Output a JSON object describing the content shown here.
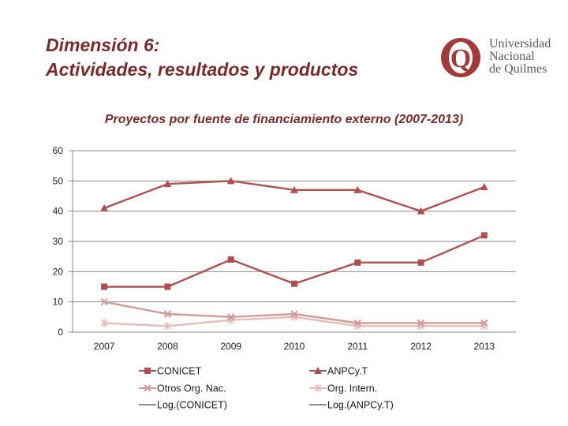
{
  "slide": {
    "title_line1": "Dimensión 6:",
    "title_line2": "Actividades, resultados y productos"
  },
  "logo": {
    "letter": "Q",
    "line1": "Universidad",
    "line2": "Nacional",
    "line3": "de Quilmes"
  },
  "colors": {
    "title": "#7a2a2a",
    "conicet": "#b0504e",
    "anpcyt": "#b0504e",
    "otros": "#d49a98",
    "intern": "#e7bcbb",
    "axis": "#888888",
    "grid": "#8a8a8a"
  },
  "chart_data": {
    "type": "line",
    "title": "Proyectos por fuente de financiamiento externo (2007-2013)",
    "categories": [
      "2007",
      "2008",
      "2009",
      "2010",
      "2011",
      "2012",
      "2013"
    ],
    "ylim": [
      0,
      60
    ],
    "yticks": [
      0,
      10,
      20,
      30,
      40,
      50,
      60
    ],
    "grid": true,
    "legend_position": "bottom",
    "series": [
      {
        "name": "CONICET",
        "marker": "square",
        "color": "#b0504e",
        "values": [
          15,
          15,
          24,
          16,
          23,
          23,
          32
        ]
      },
      {
        "name": "ANPCy.T",
        "marker": "triangle",
        "color": "#b0504e",
        "values": [
          41,
          49,
          50,
          47,
          47,
          40,
          48
        ]
      },
      {
        "name": "Otros Org. Nac.",
        "marker": "x",
        "color": "#d49a98",
        "values": [
          10,
          6,
          5,
          6,
          3,
          3,
          3
        ]
      },
      {
        "name": "Org. Intern.",
        "marker": "star",
        "color": "#e7bcbb",
        "values": [
          3,
          2,
          4,
          5,
          2,
          2,
          2
        ]
      }
    ],
    "trendlines": [
      {
        "name": "Log.(CONICET)"
      },
      {
        "name": "Log.(ANPCy.T)"
      }
    ]
  }
}
